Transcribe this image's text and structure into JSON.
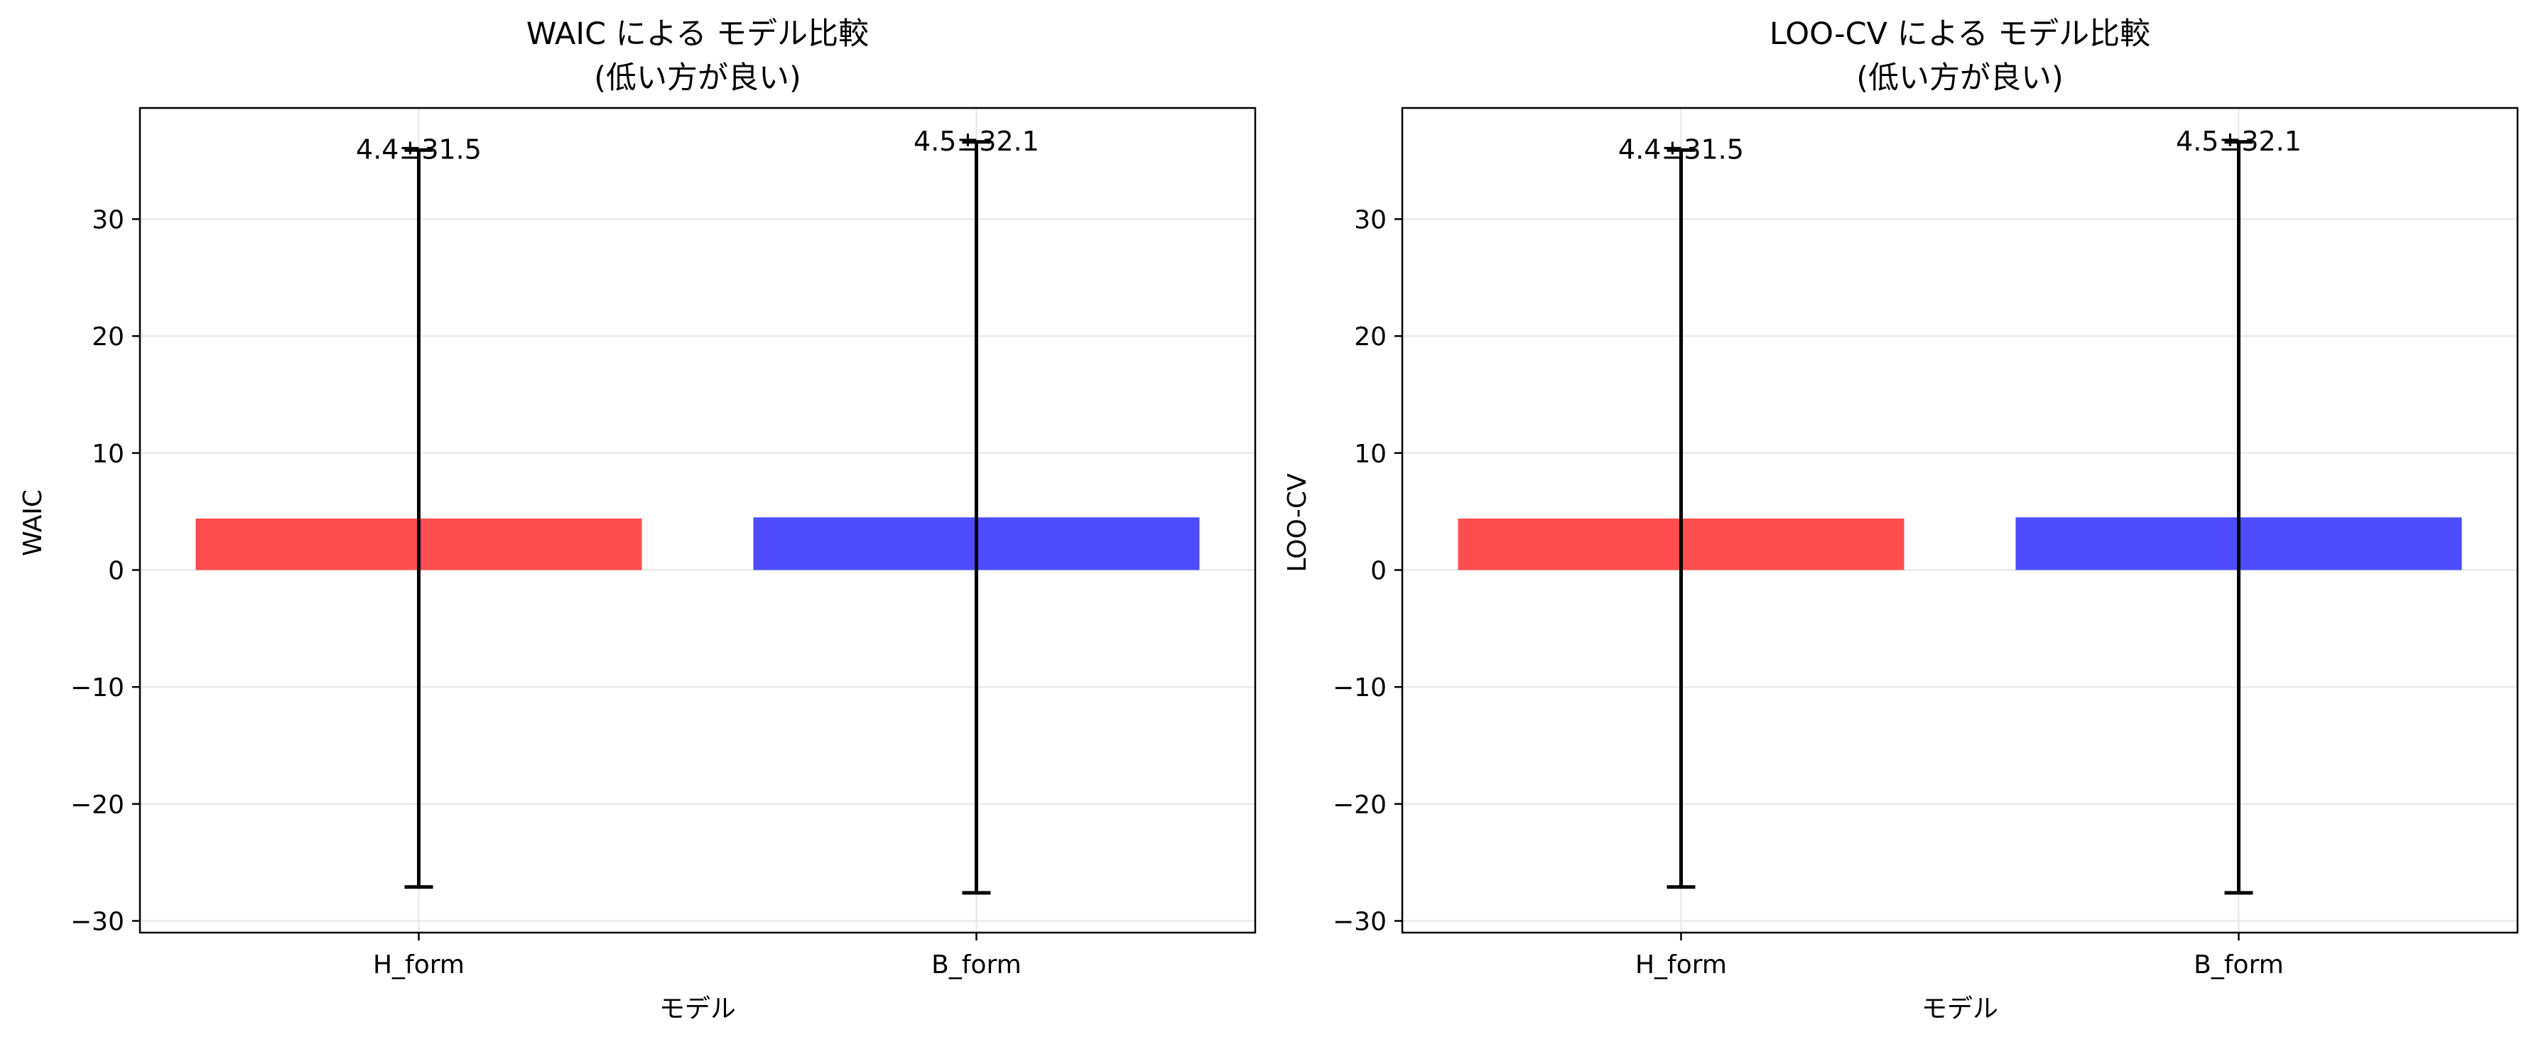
{
  "colors": {
    "h_form": "#ff4d4d",
    "b_form": "#4d4dff",
    "errorbar": "#000000",
    "grid": "#e6e6e6"
  },
  "chart_data": [
    {
      "type": "bar",
      "title_line1": "WAIC による モデル比較",
      "title_line2": "(低い方が良い)",
      "xlabel": "モデル",
      "ylabel": "WAIC",
      "categories": [
        "H_form",
        "B_form"
      ],
      "values": [
        4.4,
        4.5
      ],
      "errors": [
        31.5,
        32.1
      ],
      "data_labels": [
        "4.4±31.5",
        "4.5±32.1"
      ],
      "ylim": [
        -31,
        39.5
      ],
      "yticks": [
        -30,
        -20,
        -10,
        0,
        10,
        20,
        30
      ],
      "ytick_labels": [
        "−30",
        "−20",
        "−10",
        "0",
        "10",
        "20",
        "30"
      ],
      "grid": true,
      "legend": "none"
    },
    {
      "type": "bar",
      "title_line1": "LOO-CV による モデル比較",
      "title_line2": "(低い方が良い)",
      "xlabel": "モデル",
      "ylabel": "LOO-CV",
      "categories": [
        "H_form",
        "B_form"
      ],
      "values": [
        4.4,
        4.5
      ],
      "errors": [
        31.5,
        32.1
      ],
      "data_labels": [
        "4.4±31.5",
        "4.5±32.1"
      ],
      "ylim": [
        -31,
        39.5
      ],
      "yticks": [
        -30,
        -20,
        -10,
        0,
        10,
        20,
        30
      ],
      "ytick_labels": [
        "−30",
        "−20",
        "−10",
        "0",
        "10",
        "20",
        "30"
      ],
      "grid": true,
      "legend": "none"
    }
  ]
}
